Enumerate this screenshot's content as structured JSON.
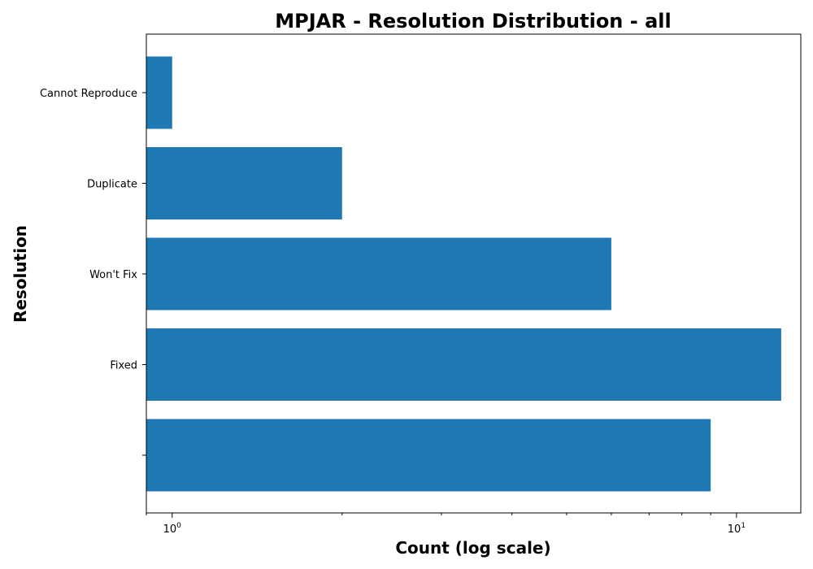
{
  "chart_data": {
    "type": "bar",
    "orientation": "horizontal",
    "title": "MPJAR - Resolution Distribution - all",
    "xlabel": "Count (log scale)",
    "ylabel": "Resolution",
    "x_scale": "log",
    "xlim": [
      0.9,
      13
    ],
    "x_ticks": [
      {
        "value": 1,
        "base": "10",
        "exp": "0"
      },
      {
        "value": 10,
        "base": "10",
        "exp": "1"
      }
    ],
    "categories": [
      "Cannot Reproduce",
      "Duplicate",
      "Won't Fix",
      "Fixed",
      ""
    ],
    "values": [
      1,
      2,
      6,
      12,
      9
    ],
    "bar_color": "#1f77b4",
    "grid": false,
    "legend": "none"
  }
}
